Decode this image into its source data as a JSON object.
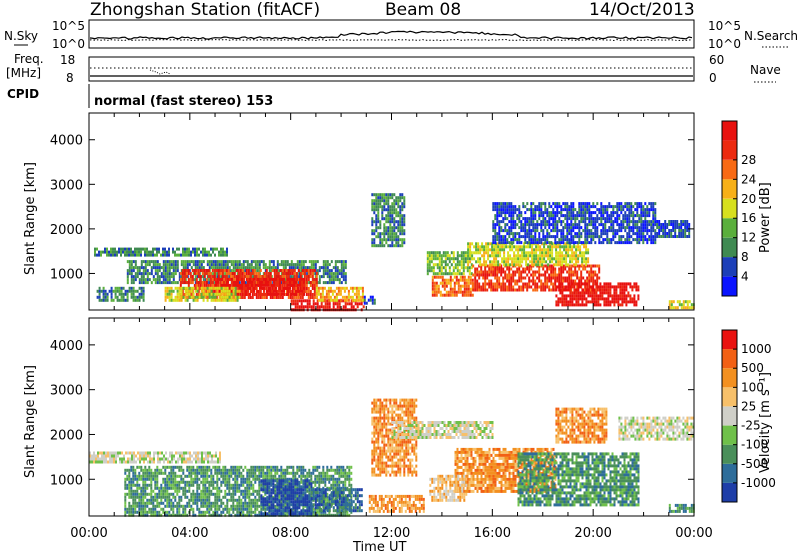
{
  "header": {
    "station": "Zhongshan Station (fitACF)",
    "beam": "Beam 08",
    "date": "14/Oct/2013"
  },
  "noise_panel": {
    "left_label": "N.Sky",
    "right_label": "N.Search",
    "left_ticks": [
      "10^5",
      "10^0"
    ],
    "right_ticks": [
      "10^5",
      "10^0"
    ]
  },
  "freq_panel": {
    "left_label_1": "Freq.",
    "left_label_2": "[MHz]",
    "right_label": "Nave",
    "left_ticks": [
      "18",
      "8"
    ],
    "right_ticks": [
      "60",
      "0"
    ]
  },
  "cpid": {
    "label": "CPID",
    "value": "normal (fast stereo) 153"
  },
  "chart_data": [
    {
      "type": "heatmap",
      "title": "Power",
      "ylabel": "Slant Range [km]",
      "xlabel": "Time UT",
      "x_ticks": [
        "00:00",
        "04:00",
        "08:00",
        "12:00",
        "16:00",
        "20:00",
        "00:00"
      ],
      "y_ticks": [
        1000,
        2000,
        3000,
        4000
      ],
      "ylim": [
        180,
        4600
      ],
      "xlim_hours": [
        0,
        24
      ],
      "colorbar": {
        "label": "Power [dB]",
        "ticks": [
          "4",
          "8",
          "12",
          "16",
          "20",
          "24",
          "28"
        ],
        "colors": [
          "#0a14ff",
          "#1c3fb8",
          "#3f8a52",
          "#5aaf3c",
          "#d7e01e",
          "#f7b018",
          "#f86a14",
          "#ec2a10",
          "#e8110f"
        ]
      },
      "regions": [
        {
          "t0": 0.2,
          "t1": 5.5,
          "r0": 1380,
          "r1": 1580,
          "level": 2
        },
        {
          "t0": 0.3,
          "t1": 2.2,
          "r0": 420,
          "r1": 700,
          "level": 2
        },
        {
          "t0": 1.5,
          "t1": 10.2,
          "r0": 800,
          "r1": 1300,
          "level": 2
        },
        {
          "t0": 3.6,
          "t1": 9.0,
          "r0": 450,
          "r1": 1100,
          "level": 7
        },
        {
          "t0": 5.0,
          "t1": 8.5,
          "r0": 500,
          "r1": 900,
          "level": 8
        },
        {
          "t0": 8.0,
          "t1": 10.9,
          "r0": 180,
          "r1": 420,
          "level": 8
        },
        {
          "t0": 9.0,
          "t1": 10.9,
          "r0": 420,
          "r1": 700,
          "level": 5
        },
        {
          "t0": 3.0,
          "t1": 6.0,
          "r0": 400,
          "r1": 700,
          "level": 4
        },
        {
          "t0": 10.9,
          "t1": 11.3,
          "r0": 300,
          "r1": 500,
          "level": 1
        },
        {
          "t0": 11.2,
          "t1": 12.5,
          "r0": 1600,
          "r1": 2800,
          "level": 2
        },
        {
          "t0": 13.4,
          "t1": 15.2,
          "r0": 1000,
          "r1": 1500,
          "level": 3
        },
        {
          "t0": 13.6,
          "t1": 15.2,
          "r0": 500,
          "r1": 950,
          "level": 6
        },
        {
          "t0": 15.2,
          "t1": 20.2,
          "r0": 600,
          "r1": 1200,
          "level": 7
        },
        {
          "t0": 15.0,
          "t1": 19.8,
          "r0": 1200,
          "r1": 1700,
          "level": 4
        },
        {
          "t0": 18.5,
          "t1": 21.8,
          "r0": 300,
          "r1": 800,
          "level": 8
        },
        {
          "t0": 16.0,
          "t1": 22.5,
          "r0": 1700,
          "r1": 2600,
          "level": 1
        },
        {
          "t0": 22.5,
          "t1": 23.8,
          "r0": 1800,
          "r1": 2200,
          "level": 1
        },
        {
          "t0": 23.0,
          "t1": 24.0,
          "r0": 250,
          "r1": 400,
          "level": 4
        }
      ]
    },
    {
      "type": "heatmap",
      "title": "Velocity",
      "ylabel": "Slant Range [km]",
      "xlabel": "Time UT",
      "x_ticks": [
        "00:00",
        "04:00",
        "08:00",
        "12:00",
        "16:00",
        "20:00",
        "00:00"
      ],
      "y_ticks": [
        1000,
        2000,
        3000,
        4000
      ],
      "ylim": [
        180,
        4600
      ],
      "xlim_hours": [
        0,
        24
      ],
      "colorbar": {
        "label": "Velocity [m s⁻¹]",
        "ticks": [
          "1000",
          "500",
          "100",
          "25",
          "-25",
          "-100",
          "-500",
          "-1000"
        ],
        "colors": [
          "#1e3ea8",
          "#2e6d9a",
          "#4a8f5a",
          "#6fc04a",
          "#cfcfc8",
          "#f7c06a",
          "#f39020",
          "#f26014",
          "#e91210"
        ]
      },
      "regions": [
        {
          "t0": 0.0,
          "t1": 5.2,
          "r0": 1380,
          "r1": 1620,
          "level": 4
        },
        {
          "t0": 1.4,
          "t1": 10.4,
          "r0": 180,
          "r1": 1300,
          "level": 2
        },
        {
          "t0": 6.8,
          "t1": 8.8,
          "r0": 200,
          "r1": 1000,
          "level": 0
        },
        {
          "t0": 8.8,
          "t1": 10.8,
          "r0": 300,
          "r1": 800,
          "level": 1
        },
        {
          "t0": 11.2,
          "t1": 13.0,
          "r0": 1100,
          "r1": 2800,
          "level": 6
        },
        {
          "t0": 11.1,
          "t1": 13.3,
          "r0": 300,
          "r1": 650,
          "level": 6
        },
        {
          "t0": 14.5,
          "t1": 18.5,
          "r0": 700,
          "r1": 1700,
          "level": 6
        },
        {
          "t0": 13.5,
          "t1": 15.0,
          "r0": 500,
          "r1": 1100,
          "level": 5
        },
        {
          "t0": 17.0,
          "t1": 21.8,
          "r0": 400,
          "r1": 1600,
          "level": 2
        },
        {
          "t0": 18.5,
          "t1": 20.5,
          "r0": 1800,
          "r1": 2600,
          "level": 6
        },
        {
          "t0": 21.0,
          "t1": 24.0,
          "r0": 1900,
          "r1": 2400,
          "level": 4
        },
        {
          "t0": 12.0,
          "t1": 16.0,
          "r0": 1900,
          "r1": 2300,
          "level": 4
        },
        {
          "t0": 23.0,
          "t1": 24.0,
          "r0": 250,
          "r1": 450,
          "level": 2
        }
      ]
    }
  ]
}
